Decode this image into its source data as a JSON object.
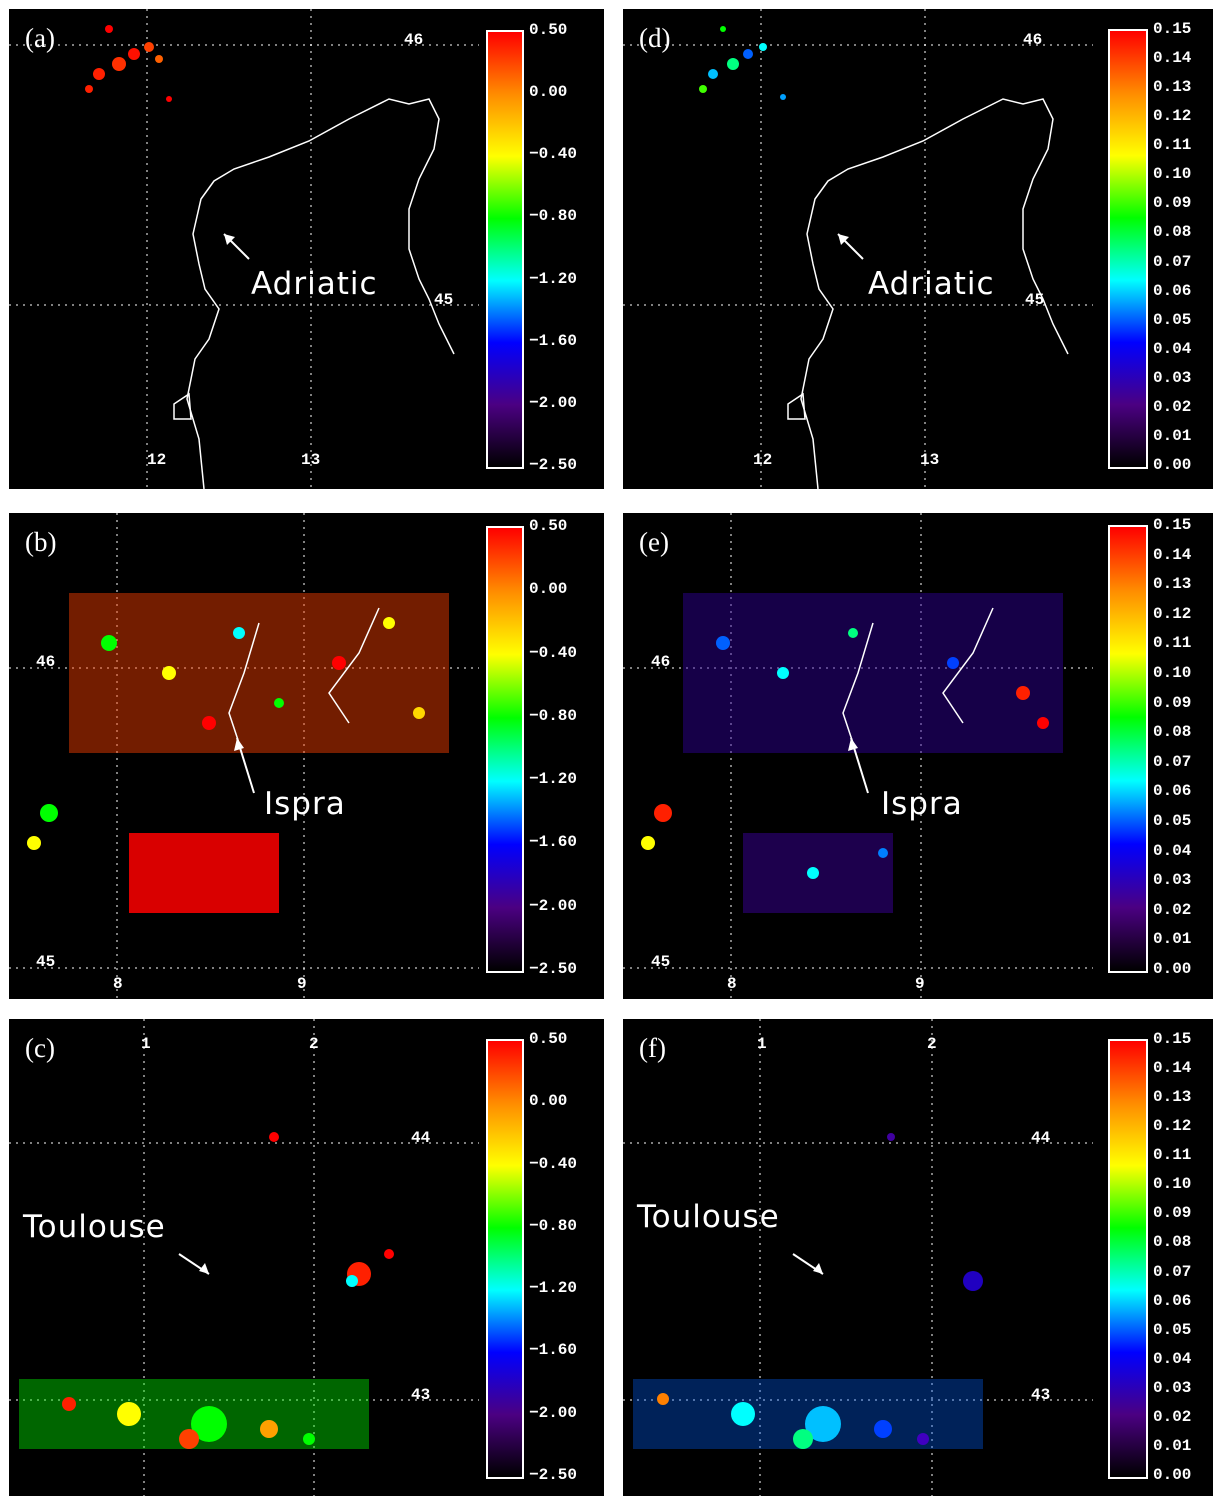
{
  "colorbar_ticks": {
    "sigma": [
      "0.50",
      "0.00",
      "−0.40",
      "−0.80",
      "−1.20",
      "−1.60",
      "−2.00",
      "−2.50"
    ],
    "coherence": [
      "0.15",
      "0.14",
      "0.13",
      "0.12",
      "0.11",
      "0.10",
      "0.09",
      "0.08",
      "0.07",
      "0.06",
      "0.05",
      "0.04",
      "0.03",
      "0.02",
      "0.01",
      "0.00"
    ]
  },
  "colorbar_stops": [
    "#000000",
    "#4b0082",
    "#0000ff",
    "#00ffff",
    "#00ff00",
    "#ffff00",
    "#ff8c00",
    "#ff0000"
  ],
  "panels": [
    {
      "id": "a",
      "label": "(a)",
      "place": "Adriatic",
      "lon": [
        "12",
        "13"
      ],
      "lat": [
        "46",
        "45"
      ],
      "scale": "sigma"
    },
    {
      "id": "b",
      "label": "(b)",
      "place": "Ispra",
      "lon": [
        "8",
        "9"
      ],
      "lat": [
        "46",
        "45"
      ],
      "scale": "sigma"
    },
    {
      "id": "c",
      "label": "(c)",
      "place": "Toulouse",
      "lon": [
        "1",
        "2"
      ],
      "lat": [
        "44",
        "43"
      ],
      "scale": "sigma"
    },
    {
      "id": "d",
      "label": "(d)",
      "place": "Adriatic",
      "lon": [
        "12",
        "13"
      ],
      "lat": [
        "46",
        "45"
      ],
      "scale": "coherence"
    },
    {
      "id": "e",
      "label": "(e)",
      "place": "Ispra",
      "lon": [
        "8",
        "9"
      ],
      "lat": [
        "46",
        "45"
      ],
      "scale": "coherence"
    },
    {
      "id": "f",
      "label": "(f)",
      "place": "Toulouse",
      "lon": [
        "1",
        "2"
      ],
      "lat": [
        "44",
        "43"
      ],
      "scale": "coherence"
    }
  ]
}
